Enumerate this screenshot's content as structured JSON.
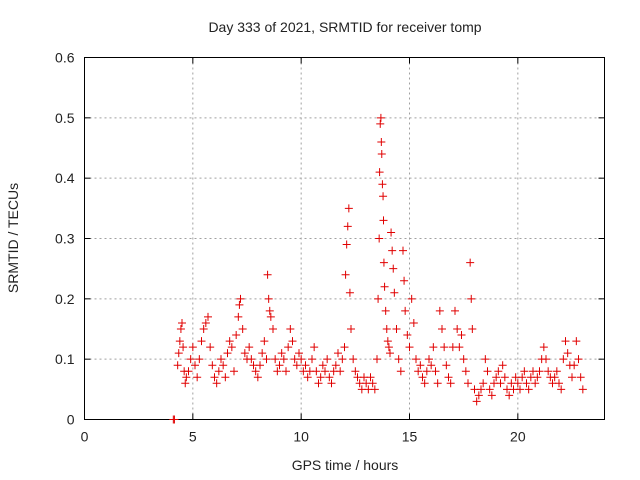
{
  "chart_data": {
    "type": "scatter",
    "title": "Day 333 of 2021, SRMTID for receiver tomp",
    "xlabel": "GPS time / hours",
    "ylabel": "SRMTID / TECUs",
    "xlim": [
      0,
      24
    ],
    "ylim": [
      0,
      0.6
    ],
    "xticks": [
      0,
      5,
      10,
      15,
      20
    ],
    "xtick_labels": [
      "0",
      "5",
      "10",
      "15",
      "20"
    ],
    "yticks": [
      0,
      0.1,
      0.2,
      0.3,
      0.4,
      0.5,
      0.6
    ],
    "ytick_labels": [
      "0",
      "0.1",
      "0.2",
      "0.3",
      "0.4",
      "0.5",
      "0.6"
    ],
    "grid": true,
    "marker": "plus",
    "color": "#e00000",
    "series": [
      {
        "name": "SRMTID",
        "points": [
          [
            4.1,
            0.0
          ],
          [
            4.15,
            0.0
          ],
          [
            4.3,
            0.09
          ],
          [
            4.35,
            0.11
          ],
          [
            4.4,
            0.13
          ],
          [
            4.45,
            0.15
          ],
          [
            4.5,
            0.16
          ],
          [
            4.55,
            0.12
          ],
          [
            4.6,
            0.08
          ],
          [
            4.65,
            0.06
          ],
          [
            4.7,
            0.07
          ],
          [
            4.8,
            0.08
          ],
          [
            4.9,
            0.1
          ],
          [
            5.0,
            0.12
          ],
          [
            5.1,
            0.09
          ],
          [
            5.2,
            0.07
          ],
          [
            5.3,
            0.1
          ],
          [
            5.4,
            0.13
          ],
          [
            5.5,
            0.15
          ],
          [
            5.6,
            0.16
          ],
          [
            5.7,
            0.17
          ],
          [
            5.8,
            0.12
          ],
          [
            5.9,
            0.09
          ],
          [
            6.0,
            0.07
          ],
          [
            6.1,
            0.06
          ],
          [
            6.2,
            0.08
          ],
          [
            6.3,
            0.1
          ],
          [
            6.4,
            0.09
          ],
          [
            6.5,
            0.07
          ],
          [
            6.6,
            0.11
          ],
          [
            6.7,
            0.13
          ],
          [
            6.8,
            0.12
          ],
          [
            6.9,
            0.08
          ],
          [
            7.0,
            0.14
          ],
          [
            7.1,
            0.17
          ],
          [
            7.15,
            0.19
          ],
          [
            7.2,
            0.2
          ],
          [
            7.3,
            0.15
          ],
          [
            7.4,
            0.11
          ],
          [
            7.5,
            0.1
          ],
          [
            7.6,
            0.12
          ],
          [
            7.7,
            0.1
          ],
          [
            7.8,
            0.09
          ],
          [
            7.9,
            0.08
          ],
          [
            8.0,
            0.07
          ],
          [
            8.1,
            0.09
          ],
          [
            8.2,
            0.11
          ],
          [
            8.3,
            0.13
          ],
          [
            8.4,
            0.1
          ],
          [
            8.45,
            0.24
          ],
          [
            8.5,
            0.2
          ],
          [
            8.55,
            0.18
          ],
          [
            8.6,
            0.17
          ],
          [
            8.7,
            0.15
          ],
          [
            8.8,
            0.1
          ],
          [
            8.9,
            0.08
          ],
          [
            9.0,
            0.09
          ],
          [
            9.1,
            0.11
          ],
          [
            9.2,
            0.1
          ],
          [
            9.3,
            0.08
          ],
          [
            9.4,
            0.12
          ],
          [
            9.5,
            0.15
          ],
          [
            9.6,
            0.13
          ],
          [
            9.7,
            0.1
          ],
          [
            9.8,
            0.09
          ],
          [
            9.9,
            0.11
          ],
          [
            10.0,
            0.1
          ],
          [
            10.1,
            0.08
          ],
          [
            10.2,
            0.09
          ],
          [
            10.3,
            0.07
          ],
          [
            10.4,
            0.08
          ],
          [
            10.5,
            0.1
          ],
          [
            10.6,
            0.12
          ],
          [
            10.7,
            0.08
          ],
          [
            10.8,
            0.06
          ],
          [
            10.9,
            0.07
          ],
          [
            11.0,
            0.09
          ],
          [
            11.1,
            0.08
          ],
          [
            11.2,
            0.1
          ],
          [
            11.3,
            0.07
          ],
          [
            11.4,
            0.06
          ],
          [
            11.5,
            0.08
          ],
          [
            11.6,
            0.09
          ],
          [
            11.7,
            0.11
          ],
          [
            11.8,
            0.08
          ],
          [
            11.9,
            0.1
          ],
          [
            12.0,
            0.12
          ],
          [
            12.05,
            0.24
          ],
          [
            12.1,
            0.29
          ],
          [
            12.15,
            0.32
          ],
          [
            12.2,
            0.35
          ],
          [
            12.25,
            0.21
          ],
          [
            12.3,
            0.15
          ],
          [
            12.4,
            0.1
          ],
          [
            12.5,
            0.08
          ],
          [
            12.6,
            0.07
          ],
          [
            12.7,
            0.06
          ],
          [
            12.8,
            0.05
          ],
          [
            12.9,
            0.07
          ],
          [
            13.0,
            0.06
          ],
          [
            13.1,
            0.05
          ],
          [
            13.2,
            0.07
          ],
          [
            13.3,
            0.06
          ],
          [
            13.4,
            0.05
          ],
          [
            13.5,
            0.1
          ],
          [
            13.55,
            0.2
          ],
          [
            13.6,
            0.3
          ],
          [
            13.62,
            0.41
          ],
          [
            13.65,
            0.49
          ],
          [
            13.68,
            0.5
          ],
          [
            13.7,
            0.46
          ],
          [
            13.72,
            0.44
          ],
          [
            13.75,
            0.39
          ],
          [
            13.78,
            0.37
          ],
          [
            13.8,
            0.33
          ],
          [
            13.82,
            0.26
          ],
          [
            13.85,
            0.22
          ],
          [
            13.9,
            0.18
          ],
          [
            13.95,
            0.15
          ],
          [
            14.0,
            0.13
          ],
          [
            14.05,
            0.12
          ],
          [
            14.1,
            0.11
          ],
          [
            14.15,
            0.31
          ],
          [
            14.2,
            0.28
          ],
          [
            14.25,
            0.25
          ],
          [
            14.3,
            0.21
          ],
          [
            14.4,
            0.15
          ],
          [
            14.5,
            0.1
          ],
          [
            14.6,
            0.08
          ],
          [
            14.7,
            0.28
          ],
          [
            14.75,
            0.23
          ],
          [
            14.8,
            0.18
          ],
          [
            14.9,
            0.14
          ],
          [
            15.0,
            0.12
          ],
          [
            15.1,
            0.2
          ],
          [
            15.2,
            0.16
          ],
          [
            15.3,
            0.1
          ],
          [
            15.4,
            0.08
          ],
          [
            15.5,
            0.09
          ],
          [
            15.6,
            0.07
          ],
          [
            15.7,
            0.06
          ],
          [
            15.8,
            0.08
          ],
          [
            15.9,
            0.1
          ],
          [
            16.0,
            0.09
          ],
          [
            16.1,
            0.12
          ],
          [
            16.2,
            0.08
          ],
          [
            16.3,
            0.06
          ],
          [
            16.4,
            0.18
          ],
          [
            16.5,
            0.15
          ],
          [
            16.6,
            0.12
          ],
          [
            16.7,
            0.09
          ],
          [
            16.8,
            0.07
          ],
          [
            16.9,
            0.06
          ],
          [
            17.0,
            0.12
          ],
          [
            17.1,
            0.18
          ],
          [
            17.2,
            0.15
          ],
          [
            17.3,
            0.12
          ],
          [
            17.4,
            0.14
          ],
          [
            17.5,
            0.1
          ],
          [
            17.6,
            0.08
          ],
          [
            17.7,
            0.06
          ],
          [
            17.8,
            0.26
          ],
          [
            17.85,
            0.2
          ],
          [
            17.9,
            0.15
          ],
          [
            18.0,
            0.05
          ],
          [
            18.1,
            0.03
          ],
          [
            18.2,
            0.04
          ],
          [
            18.3,
            0.05
          ],
          [
            18.4,
            0.06
          ],
          [
            18.5,
            0.1
          ],
          [
            18.6,
            0.08
          ],
          [
            18.7,
            0.05
          ],
          [
            18.8,
            0.04
          ],
          [
            18.9,
            0.06
          ],
          [
            19.0,
            0.07
          ],
          [
            19.1,
            0.08
          ],
          [
            19.2,
            0.06
          ],
          [
            19.3,
            0.09
          ],
          [
            19.4,
            0.07
          ],
          [
            19.5,
            0.05
          ],
          [
            19.6,
            0.04
          ],
          [
            19.7,
            0.06
          ],
          [
            19.8,
            0.05
          ],
          [
            19.9,
            0.07
          ],
          [
            20.0,
            0.06
          ],
          [
            20.1,
            0.05
          ],
          [
            20.2,
            0.07
          ],
          [
            20.3,
            0.08
          ],
          [
            20.4,
            0.06
          ],
          [
            20.5,
            0.05
          ],
          [
            20.6,
            0.07
          ],
          [
            20.7,
            0.08
          ],
          [
            20.8,
            0.06
          ],
          [
            20.9,
            0.07
          ],
          [
            21.0,
            0.08
          ],
          [
            21.1,
            0.1
          ],
          [
            21.2,
            0.12
          ],
          [
            21.3,
            0.1
          ],
          [
            21.4,
            0.08
          ],
          [
            21.5,
            0.07
          ],
          [
            21.6,
            0.06
          ],
          [
            21.7,
            0.07
          ],
          [
            21.8,
            0.08
          ],
          [
            21.9,
            0.06
          ],
          [
            22.0,
            0.05
          ],
          [
            22.1,
            0.1
          ],
          [
            22.2,
            0.13
          ],
          [
            22.3,
            0.11
          ],
          [
            22.4,
            0.09
          ],
          [
            22.5,
            0.07
          ],
          [
            22.6,
            0.09
          ],
          [
            22.7,
            0.13
          ],
          [
            22.8,
            0.1
          ],
          [
            22.9,
            0.07
          ],
          [
            23.0,
            0.05
          ]
        ]
      }
    ]
  }
}
